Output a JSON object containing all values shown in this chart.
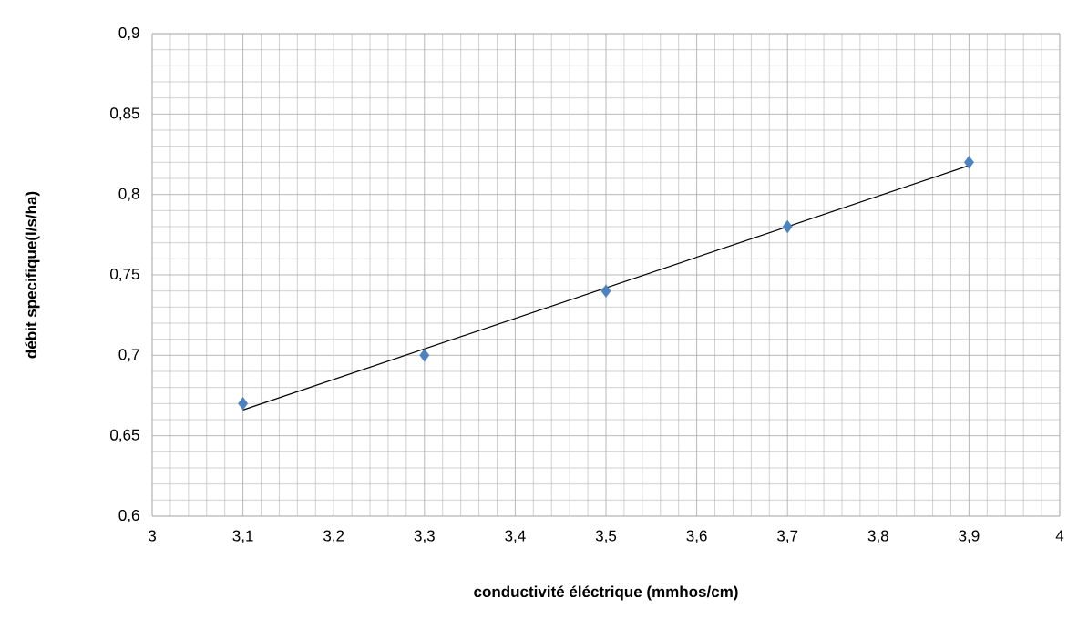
{
  "chart_data": {
    "type": "scatter",
    "xlabel": "conductivité éléctrique (mmhos/cm)",
    "ylabel": "débit specifique(l/s/ha)",
    "series": [
      {
        "type": "scatter",
        "color": "#4f81bd",
        "marker": "diamond",
        "x": [
          3.1,
          3.3,
          3.5,
          3.7,
          3.9
        ],
        "values": [
          0.67,
          0.7,
          0.74,
          0.78,
          0.82
        ]
      },
      {
        "type": "line",
        "color": "#000000",
        "marker": "none",
        "x": [
          3.1,
          3.9
        ],
        "values": [
          0.666,
          0.818
        ]
      }
    ],
    "xlim": [
      3,
      4
    ],
    "ylim": [
      0.6,
      0.9
    ],
    "xticks": [
      3,
      {
        "value": 3.1,
        "label": "3,1"
      },
      {
        "value": 3.2,
        "label": "3,2"
      },
      {
        "value": 3.3,
        "label": "3,3"
      },
      {
        "value": 3.4,
        "label": "3,4"
      },
      {
        "value": 3.5,
        "label": "3,5"
      },
      {
        "value": 3.6,
        "label": "3,6"
      },
      {
        "value": 3.7,
        "label": "3,7"
      },
      {
        "value": 3.8,
        "label": "3,8"
      },
      {
        "value": 3.9,
        "label": "3,9"
      },
      4
    ],
    "yticks": [
      {
        "value": 0.6,
        "label": "0,6"
      },
      {
        "value": 0.65,
        "label": "0,65"
      },
      {
        "value": 0.7,
        "label": "0,7"
      },
      {
        "value": 0.75,
        "label": "0,75"
      },
      {
        "value": 0.8,
        "label": "0,8"
      },
      {
        "value": 0.85,
        "label": "0,85"
      },
      {
        "value": 0.9,
        "label": "0,9"
      }
    ],
    "grid": true
  }
}
